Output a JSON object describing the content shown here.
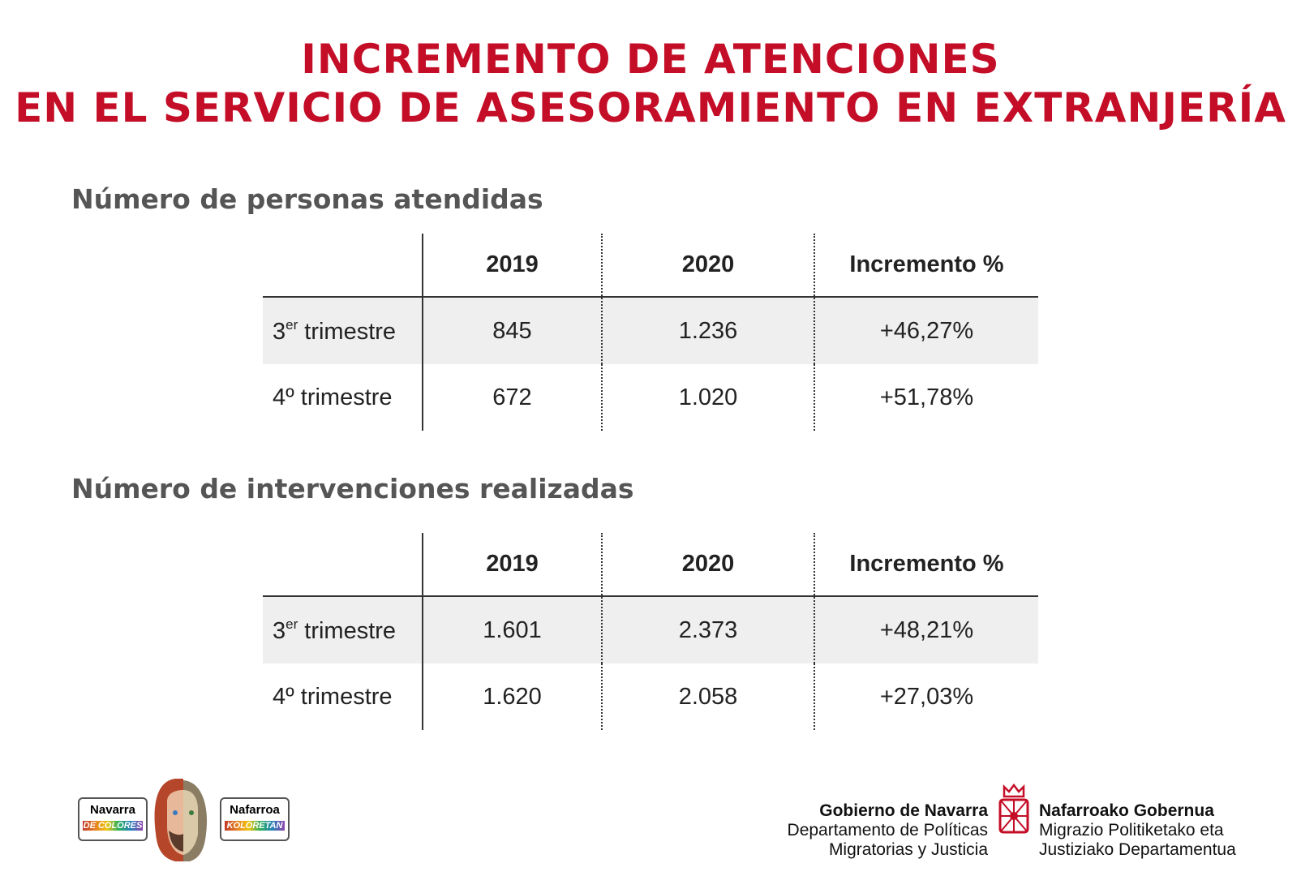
{
  "title": {
    "lines": [
      "INCREMENTO DE ATENCIONES",
      "EN EL SERVICIO DE ASESORAMIENTO EN EXTRANJERÍA"
    ]
  },
  "tables": [
    {
      "heading": "Número de personas atendidas",
      "columns": [
        "2019",
        "2020",
        "Incremento %"
      ],
      "rows": [
        {
          "label_number": "3",
          "label_sup": "er",
          "label_rest": "trimestre",
          "cells": [
            "845",
            "1.236",
            "+46,27%"
          ]
        },
        {
          "label": "4º trimestre",
          "cells": [
            "672",
            "1.020",
            "+51,78%"
          ]
        }
      ]
    },
    {
      "heading": "Número de intervenciones realizadas",
      "columns": [
        "2019",
        "2020",
        "Incremento %"
      ],
      "rows": [
        {
          "label_number": "3",
          "label_sup": "er",
          "label_rest": "trimestre",
          "cells": [
            "1.601",
            "2.373",
            "+48,21%"
          ]
        },
        {
          "label": "4º trimestre",
          "cells": [
            "1.620",
            "2.058",
            "+27,03%"
          ]
        }
      ]
    }
  ],
  "footer": {
    "logo_left": {
      "top": "Navarra",
      "bottom": "DE COLORES"
    },
    "logo_right": {
      "top": "Nafarroa",
      "bottom": "KOLORETAN"
    },
    "gov_es": [
      "Gobierno de Navarra",
      "Departamento de Políticas",
      "Migratorias y Justicia"
    ],
    "gov_eu": [
      "Nafarroako Gobernua",
      "Migrazio Politiketako eta",
      "Justiziako Departamentua"
    ]
  }
}
